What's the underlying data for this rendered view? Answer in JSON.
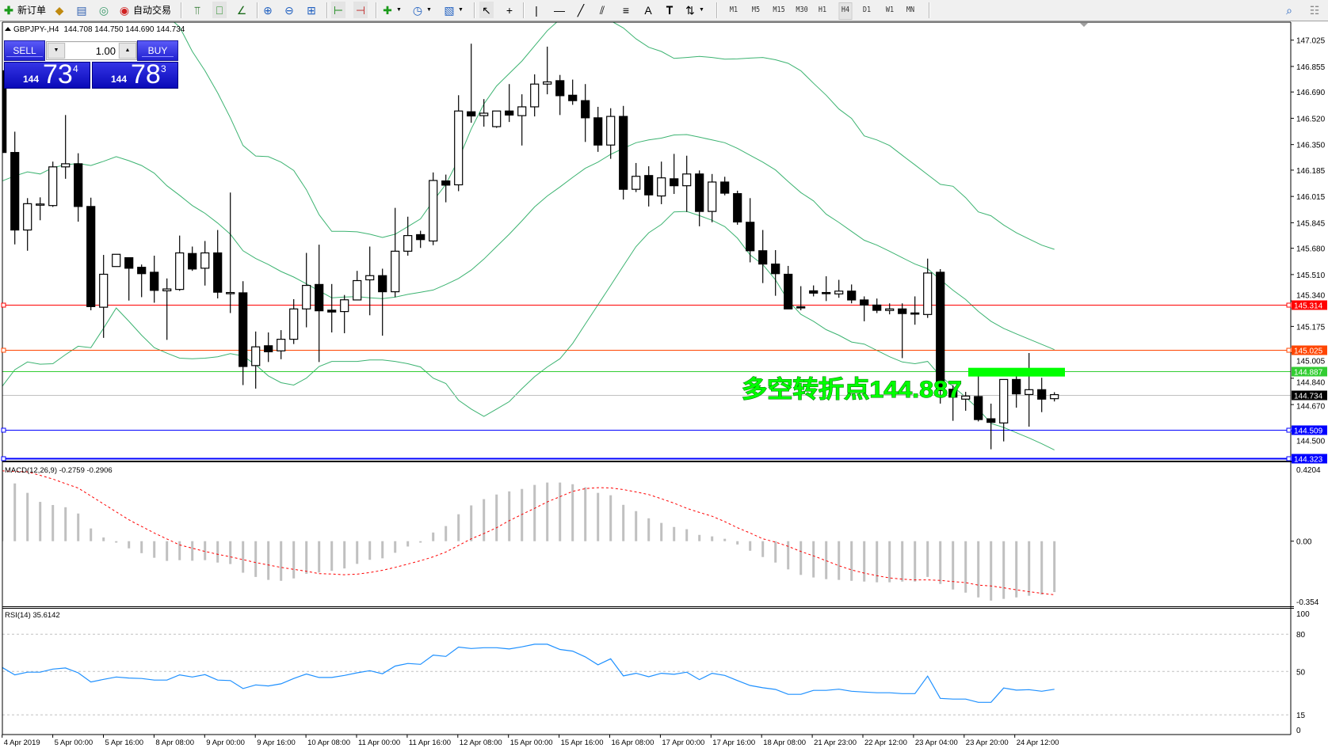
{
  "toolbar": {
    "new_order_label": "新订单",
    "autotrade_label": "自动交易",
    "timeframes": [
      "M1",
      "M5",
      "M15",
      "M30",
      "H1",
      "H4",
      "D1",
      "W1",
      "MN"
    ],
    "active_timeframe": "H4"
  },
  "chart_header": {
    "symbol": "GBPJPY-,H4",
    "ohlc": "144.708 144.750 144.690 144.734"
  },
  "trade_panel": {
    "sell_label": "SELL",
    "buy_label": "BUY",
    "lot": "1.00",
    "sell_price": {
      "prefix": "144",
      "big": "73",
      "sup": "4"
    },
    "buy_price": {
      "prefix": "144",
      "big": "78",
      "sup": "3"
    }
  },
  "price_axis": {
    "labels": [
      "147.025",
      "146.855",
      "146.690",
      "146.520",
      "146.350",
      "146.185",
      "146.015",
      "145.845",
      "145.680",
      "145.510",
      "145.340",
      "145.175",
      "145.005",
      "144.840",
      "144.670",
      "144.500"
    ]
  },
  "hlines": [
    {
      "price": 145.314,
      "label": "145.314",
      "color": "#ff0000",
      "markers": true
    },
    {
      "price": 145.025,
      "label": "145.025",
      "color": "#ff4500",
      "markers": true
    },
    {
      "price": 144.887,
      "label": "144.887",
      "color": "#32cd32",
      "markers": false
    },
    {
      "price": 144.734,
      "label": "144.734",
      "color": "#c0c0c0",
      "label_bg": "#000000",
      "markers": false
    },
    {
      "price": 144.509,
      "label": "144.509",
      "color": "#0000ff",
      "markers": true
    },
    {
      "price": 144.323,
      "label": "144.323",
      "color": "#0000ff",
      "markers": true
    }
  ],
  "annotation": {
    "text": "多空转折点144.887",
    "color": "#00ff00",
    "marker_price": 144.887
  },
  "colors": {
    "bands": "#3cb371",
    "macd_hist": "#c0c0c0",
    "macd_signal": "#ff0000",
    "rsi": "#1e90ff",
    "bull": "#ffffff",
    "bear": "#000000"
  },
  "candles": [
    [
      146.827,
      146.845,
      146.263,
      146.299
    ],
    [
      146.299,
      146.433,
      145.705,
      145.798
    ],
    [
      145.798,
      146.004,
      145.664,
      145.968
    ],
    [
      145.962,
      146.009,
      145.861,
      145.966
    ],
    [
      145.956,
      146.24,
      145.947,
      146.206
    ],
    [
      146.206,
      146.541,
      146.129,
      146.226
    ],
    [
      146.226,
      146.294,
      145.852,
      145.95
    ],
    [
      145.95,
      146.007,
      145.279,
      145.303
    ],
    [
      145.299,
      145.637,
      145.101,
      145.512
    ],
    [
      145.562,
      145.641,
      145.562,
      145.641
    ],
    [
      145.619,
      145.619,
      145.342,
      145.551
    ],
    [
      145.557,
      145.575,
      145.364,
      145.516
    ],
    [
      145.525,
      145.632,
      145.328,
      145.408
    ],
    [
      145.405,
      145.485,
      145.088,
      145.417
    ],
    [
      145.414,
      145.762,
      145.405,
      145.65
    ],
    [
      145.646,
      145.691,
      145.534,
      145.546
    ],
    [
      145.551,
      145.727,
      145.439,
      145.65
    ],
    [
      145.65,
      145.798,
      145.356,
      145.396
    ],
    [
      145.392,
      146.04,
      145.261,
      145.394
    ],
    [
      145.392,
      145.467,
      144.796,
      144.916
    ],
    [
      144.922,
      145.142,
      144.773,
      145.043
    ],
    [
      145.05,
      145.136,
      144.945,
      145.011
    ],
    [
      145.017,
      145.151,
      144.963,
      145.092
    ],
    [
      145.092,
      145.351,
      145.061,
      145.288
    ],
    [
      145.288,
      145.65,
      145.169,
      145.44
    ],
    [
      145.446,
      145.703,
      144.945,
      145.276
    ],
    [
      145.28,
      145.449,
      145.136,
      145.268
    ],
    [
      145.271,
      145.378,
      145.131,
      145.347
    ],
    [
      145.346,
      145.534,
      145.346,
      145.471
    ],
    [
      145.476,
      145.691,
      145.247,
      145.503
    ],
    [
      145.503,
      145.548,
      145.115,
      145.399
    ],
    [
      145.399,
      145.941,
      145.364,
      145.661
    ],
    [
      145.661,
      145.884,
      145.632,
      145.762
    ],
    [
      145.768,
      145.793,
      145.682,
      145.736
    ],
    [
      145.727,
      146.17,
      145.7,
      146.118
    ],
    [
      146.115,
      146.156,
      145.977,
      146.088
    ],
    [
      146.09,
      146.669,
      146.049,
      146.567
    ],
    [
      146.562,
      147.002,
      146.491,
      146.535
    ],
    [
      146.537,
      146.644,
      146.466,
      146.553
    ],
    [
      146.466,
      146.567,
      146.458,
      146.567
    ],
    [
      146.567,
      146.741,
      146.496,
      146.541
    ],
    [
      146.537,
      146.675,
      146.344,
      146.594
    ],
    [
      146.594,
      146.804,
      146.532,
      146.741
    ],
    [
      146.741,
      146.983,
      146.675,
      146.755
    ],
    [
      146.763,
      146.8,
      146.541,
      146.666
    ],
    [
      146.669,
      146.77,
      146.607,
      146.634
    ],
    [
      146.634,
      146.741,
      146.367,
      146.523
    ],
    [
      146.523,
      146.594,
      146.303,
      146.347
    ],
    [
      146.347,
      146.585,
      146.258,
      146.532
    ],
    [
      146.532,
      146.6,
      145.995,
      146.061
    ],
    [
      146.061,
      146.231,
      146.043,
      146.145
    ],
    [
      146.15,
      146.21,
      145.95,
      146.025
    ],
    [
      146.018,
      146.24,
      145.965,
      146.135
    ],
    [
      146.129,
      146.29,
      146.031,
      146.084
    ],
    [
      146.084,
      146.278,
      145.915,
      146.16
    ],
    [
      146.16,
      146.183,
      145.822,
      145.918
    ],
    [
      145.918,
      146.16,
      145.848,
      146.108
    ],
    [
      146.108,
      146.142,
      146.022,
      146.036
    ],
    [
      146.033,
      146.052,
      145.832,
      145.85
    ],
    [
      145.848,
      146.004,
      145.589,
      145.664
    ],
    [
      145.664,
      145.798,
      145.455,
      145.578
    ],
    [
      145.578,
      145.668,
      145.373,
      145.516
    ],
    [
      145.512,
      145.566,
      145.288,
      145.288
    ],
    [
      145.302,
      145.435,
      145.279,
      145.3
    ],
    [
      145.405,
      145.44,
      145.369,
      145.39
    ],
    [
      145.394,
      145.499,
      145.339,
      145.392
    ],
    [
      145.385,
      145.476,
      145.36,
      145.403
    ],
    [
      145.403,
      145.446,
      145.324,
      145.346
    ],
    [
      145.346,
      145.369,
      145.208,
      145.313
    ],
    [
      145.313,
      145.355,
      145.261,
      145.279
    ],
    [
      145.278,
      145.324,
      145.253,
      145.288
    ],
    [
      145.288,
      145.324,
      144.97,
      145.258
    ],
    [
      145.262,
      145.369,
      145.186,
      145.26
    ],
    [
      145.252,
      145.613,
      145.23,
      145.52
    ],
    [
      145.525,
      145.545,
      144.676,
      144.761
    ],
    [
      144.769,
      144.795,
      144.565,
      144.718
    ],
    [
      144.705,
      144.752,
      144.63,
      144.725
    ],
    [
      144.722,
      144.855,
      144.561,
      144.573
    ],
    [
      144.578,
      144.676,
      144.381,
      144.555
    ],
    [
      144.551,
      144.832,
      144.432,
      144.832
    ],
    [
      144.832,
      144.855,
      144.65,
      144.739
    ],
    [
      144.735,
      145.003,
      144.527,
      144.766
    ],
    [
      144.766,
      144.843,
      144.621,
      144.705
    ],
    [
      144.708,
      144.75,
      144.69,
      144.734
    ]
  ],
  "bollinger": {
    "upper": [
      148.0,
      147.95,
      147.9,
      147.85,
      147.8,
      147.75,
      147.7,
      147.6,
      147.5,
      147.4,
      147.35,
      147.3,
      147.25,
      147.18,
      147.11,
      146.952,
      146.827,
      146.684,
      146.523,
      146.344,
      146.276,
      146.272,
      146.237,
      146.183,
      146.058,
      145.897,
      145.789,
      145.789,
      145.786,
      145.771,
      145.75,
      145.771,
      145.82,
      145.87,
      145.986,
      146.093,
      146.254,
      146.451,
      146.612,
      146.729,
      146.809,
      146.89,
      146.988,
      147.086,
      147.16,
      147.2,
      147.22,
      147.2,
      147.15,
      147.104,
      147.033,
      146.979,
      146.952,
      146.907,
      146.913,
      146.92,
      146.913,
      146.902,
      146.904,
      146.909,
      146.913,
      146.898,
      146.875,
      146.827,
      146.746,
      146.669,
      146.58,
      146.519,
      146.406,
      146.38,
      146.344,
      146.281,
      146.219,
      146.156,
      146.093,
      146.081,
      146.007,
      145.915,
      145.89,
      145.83,
      145.78,
      145.74,
      145.7,
      145.673
    ],
    "middle": [
      146.115,
      146.147,
      146.174,
      146.16,
      146.201,
      146.219,
      146.228,
      146.215,
      146.242,
      146.272,
      146.246,
      146.215,
      146.165,
      146.084,
      146.022,
      145.956,
      145.906,
      145.843,
      145.771,
      145.664,
      145.614,
      145.575,
      145.53,
      145.494,
      145.45,
      145.405,
      145.36,
      145.365,
      145.367,
      145.36,
      145.355,
      145.364,
      145.382,
      145.396,
      145.41,
      145.446,
      145.485,
      145.539,
      145.61,
      145.691,
      145.771,
      145.857,
      145.947,
      146.018,
      146.076,
      146.138,
      146.197,
      146.237,
      146.287,
      146.326,
      146.362,
      146.38,
      146.392,
      146.412,
      146.415,
      146.398,
      146.38,
      146.362,
      146.326,
      146.281,
      146.237,
      146.186,
      146.111,
      146.04,
      145.986,
      145.9,
      145.847,
      145.789,
      145.732,
      145.7,
      145.661,
      145.619,
      145.578,
      145.548,
      145.477,
      145.409,
      145.349,
      145.272,
      145.208,
      145.162,
      145.127,
      145.093,
      145.059,
      145.025
    ],
    "lower": [
      144.787,
      144.895,
      144.945,
      144.931,
      144.934,
      144.993,
      145.047,
      145.038,
      145.163,
      145.294,
      145.208,
      145.118,
      145.038,
      145.002,
      144.97,
      144.966,
      144.97,
      144.979,
      144.999,
      144.984,
      144.927,
      144.855,
      144.811,
      144.796,
      144.841,
      144.916,
      144.949,
      144.949,
      144.949,
      144.958,
      144.958,
      144.949,
      144.934,
      144.913,
      144.841,
      144.806,
      144.698,
      144.641,
      144.594,
      144.641,
      144.689,
      144.773,
      144.85,
      144.913,
      144.966,
      145.065,
      145.19,
      145.315,
      145.44,
      145.566,
      145.691,
      145.78,
      145.834,
      145.915,
      145.918,
      145.891,
      145.861,
      145.82,
      145.745,
      145.637,
      145.575,
      145.476,
      145.342,
      145.253,
      145.208,
      145.154,
      145.118,
      145.074,
      145.061,
      145.02,
      144.979,
      144.945,
      144.934,
      144.949,
      144.855,
      144.787,
      144.718,
      144.641,
      144.548,
      144.522,
      144.488,
      144.454,
      144.417,
      144.377
    ]
  },
  "macd": {
    "label": "MACD(12,26,9) -0.2759 -0.2906",
    "axis_labels": [
      "0.4204",
      "0.00",
      "-0.354"
    ],
    "histogram": [
      0.376,
      0.313,
      0.262,
      0.213,
      0.196,
      0.184,
      0.15,
      0.069,
      0.02,
      -0.008,
      -0.039,
      -0.065,
      -0.09,
      -0.107,
      -0.103,
      -0.106,
      -0.103,
      -0.116,
      -0.124,
      -0.171,
      -0.194,
      -0.21,
      -0.215,
      -0.202,
      -0.177,
      -0.17,
      -0.161,
      -0.148,
      -0.123,
      -0.101,
      -0.093,
      -0.063,
      -0.029,
      -0.008,
      0.047,
      0.082,
      0.146,
      0.194,
      0.228,
      0.253,
      0.27,
      0.283,
      0.305,
      0.318,
      0.318,
      0.309,
      0.292,
      0.262,
      0.249,
      0.197,
      0.163,
      0.124,
      0.099,
      0.077,
      0.065,
      0.034,
      0.026,
      0.013,
      -0.018,
      -0.052,
      -0.086,
      -0.116,
      -0.153,
      -0.183,
      -0.197,
      -0.206,
      -0.21,
      -0.215,
      -0.219,
      -0.223,
      -0.223,
      -0.219,
      -0.219,
      -0.194,
      -0.232,
      -0.262,
      -0.279,
      -0.305,
      -0.322,
      -0.313,
      -0.305,
      -0.296,
      -0.29,
      -0.2759
    ],
    "signal": [
      0.381,
      0.378,
      0.376,
      0.357,
      0.337,
      0.312,
      0.288,
      0.245,
      0.202,
      0.159,
      0.116,
      0.08,
      0.044,
      0.012,
      -0.02,
      -0.038,
      -0.056,
      -0.071,
      -0.085,
      -0.1,
      -0.116,
      -0.129,
      -0.142,
      -0.153,
      -0.163,
      -0.176,
      -0.178,
      -0.182,
      -0.179,
      -0.17,
      -0.158,
      -0.142,
      -0.124,
      -0.106,
      -0.085,
      -0.059,
      -0.023,
      0.013,
      0.041,
      0.073,
      0.111,
      0.145,
      0.178,
      0.213,
      0.241,
      0.27,
      0.285,
      0.29,
      0.289,
      0.28,
      0.267,
      0.253,
      0.23,
      0.206,
      0.178,
      0.156,
      0.135,
      0.106,
      0.073,
      0.044,
      0.013,
      -0.005,
      -0.028,
      -0.056,
      -0.08,
      -0.106,
      -0.133,
      -0.156,
      -0.173,
      -0.187,
      -0.199,
      -0.206,
      -0.21,
      -0.21,
      -0.213,
      -0.219,
      -0.225,
      -0.238,
      -0.243,
      -0.253,
      -0.264,
      -0.274,
      -0.283,
      -0.2906
    ]
  },
  "rsi": {
    "label": "RSI(14) 35.6142",
    "axis_labels": [
      "100",
      "80",
      "50",
      "15",
      "0"
    ],
    "levels": [
      80,
      50,
      15
    ],
    "values": [
      53.2,
      47.2,
      49.4,
      49.4,
      51.9,
      52.8,
      48.9,
      41.5,
      43.6,
      45.5,
      44.7,
      44.3,
      43.0,
      43.0,
      47.2,
      45.5,
      47.4,
      43.0,
      42.6,
      36.2,
      39.1,
      38.3,
      40.0,
      44.3,
      47.9,
      45.1,
      45.1,
      46.8,
      48.9,
      50.6,
      48.1,
      54.3,
      56.4,
      55.7,
      63.2,
      62.1,
      69.6,
      68.5,
      69.1,
      69.1,
      68.1,
      69.8,
      71.9,
      71.9,
      67.7,
      66.4,
      61.7,
      55.3,
      60.2,
      46.4,
      48.5,
      45.7,
      48.5,
      47.7,
      49.4,
      43.4,
      48.5,
      46.8,
      42.6,
      38.7,
      36.8,
      35.5,
      31.5,
      31.5,
      34.7,
      34.7,
      35.7,
      34.0,
      33.4,
      32.8,
      32.8,
      32.1,
      32.1,
      46.2,
      28.3,
      27.7,
      27.7,
      25.1,
      25.1,
      36.6,
      34.9,
      35.3,
      34.0,
      35.6142
    ]
  },
  "time_axis": {
    "labels": [
      "4 Apr 2019",
      "5 Apr 00:00",
      "5 Apr 16:00",
      "8 Apr 08:00",
      "9 Apr 00:00",
      "9 Apr 16:00",
      "10 Apr 08:00",
      "11 Apr 00:00",
      "11 Apr 16:00",
      "12 Apr 08:00",
      "15 Apr 00:00",
      "15 Apr 16:00",
      "16 Apr 08:00",
      "17 Apr 00:00",
      "17 Apr 16:00",
      "18 Apr 08:00",
      "21 Apr 23:00",
      "22 Apr 12:00",
      "23 Apr 04:00",
      "23 Apr 20:00",
      "24 Apr 12:00"
    ]
  }
}
